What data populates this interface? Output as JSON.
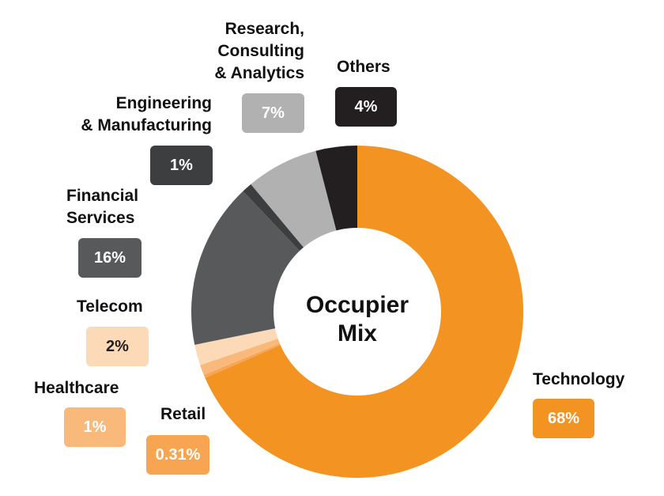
{
  "chart_data": {
    "type": "pie",
    "title": "Occupier\nMix",
    "series": [
      {
        "name": "",
        "slices": [
          {
            "label": "Technology",
            "value": 68,
            "display": "68%",
            "color": "#f39322"
          },
          {
            "label": "Retail",
            "value": 0.31,
            "display": "0.31%",
            "color": "#f7a550"
          },
          {
            "label": "Healthcare",
            "value": 1,
            "display": "1%",
            "color": "#f9b97a"
          },
          {
            "label": "Telecom",
            "value": 2,
            "display": "2%",
            "color": "#fcd9b7"
          },
          {
            "label": "Financial\nServices",
            "value": 16,
            "display": "16%",
            "color": "#58595b"
          },
          {
            "label": "Engineering\n& Manufacturing",
            "value": 1,
            "display": "1%",
            "color": "#3d3e40"
          },
          {
            "label": "Research,\nConsulting\n& Analytics",
            "value": 7,
            "display": "7%",
            "color": "#b1b1b1"
          },
          {
            "label": "Others",
            "value": 4,
            "display": "4%",
            "color": "#231f20"
          }
        ]
      }
    ]
  }
}
